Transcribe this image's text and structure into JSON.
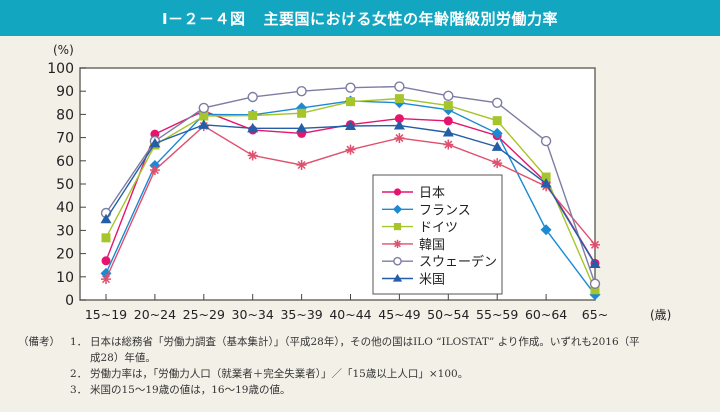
{
  "header": {
    "figure_number": "Ⅰ－２－４図",
    "title": "主要国における女性の年齢階級別労働力率"
  },
  "chart_data": {
    "type": "line",
    "title": "主要国における女性の年齢階級別労働力率",
    "ylabel": "(%)",
    "xlabel": "(歳)",
    "ylim": [
      0,
      100
    ],
    "yticks": [
      0,
      10,
      20,
      30,
      40,
      50,
      60,
      70,
      80,
      90,
      100
    ],
    "grid": false,
    "legend_position": "center-right",
    "categories": [
      "15~19",
      "20~24",
      "25~29",
      "30~34",
      "35~39",
      "40~44",
      "45~49",
      "50~54",
      "55~59",
      "60~64",
      "65~"
    ],
    "series": [
      {
        "name": "日本",
        "marker": "circle",
        "color": "#e5156e",
        "values": [
          16.9,
          71.5,
          81.5,
          73.3,
          71.8,
          75.6,
          78.2,
          77.2,
          70.8,
          50.7,
          15.8
        ]
      },
      {
        "name": "フランス",
        "marker": "diamond",
        "color": "#1b8ad2",
        "values": [
          11.5,
          58.0,
          80.0,
          79.8,
          82.8,
          85.8,
          85.0,
          82.0,
          71.8,
          30.3,
          2.3
        ]
      },
      {
        "name": "ドイツ",
        "marker": "square",
        "color": "#a6c52b",
        "values": [
          26.8,
          66.8,
          79.3,
          79.5,
          80.5,
          85.5,
          86.8,
          83.8,
          77.3,
          53.0,
          4.4
        ]
      },
      {
        "name": "韓国",
        "marker": "asterisk",
        "color": "#e04f6e",
        "values": [
          9.0,
          56.0,
          75.0,
          62.3,
          58.2,
          64.8,
          69.8,
          67.0,
          59.0,
          49.0,
          23.8
        ]
      },
      {
        "name": "スウェーデン",
        "marker": "open-circle",
        "color": "#7d7ca3",
        "values": [
          37.5,
          68.5,
          82.8,
          87.5,
          90.0,
          91.5,
          92.0,
          88.0,
          85.0,
          68.5,
          7.0
        ]
      },
      {
        "name": "米国",
        "marker": "triangle",
        "color": "#245ea6",
        "values": [
          34.8,
          67.5,
          75.5,
          74.0,
          74.0,
          75.0,
          75.2,
          72.2,
          66.0,
          50.2,
          15.5
        ]
      }
    ]
  },
  "notes": {
    "head": "（備考）",
    "items": [
      {
        "num": "1．",
        "text": "日本は総務省「労働力調査（基本集計）」（平成28年），その他の国はILO “ILOSTAT” より作成。いずれも2016（平",
        "cont": "成28）年値。"
      },
      {
        "num": "2．",
        "text": "労働力率は，「労働力人口（就業者＋完全失業者）」／「15歳以上人口」×100。"
      },
      {
        "num": "3．",
        "text": "米国の15～19歳の値は，16～19歳の値。"
      }
    ]
  }
}
